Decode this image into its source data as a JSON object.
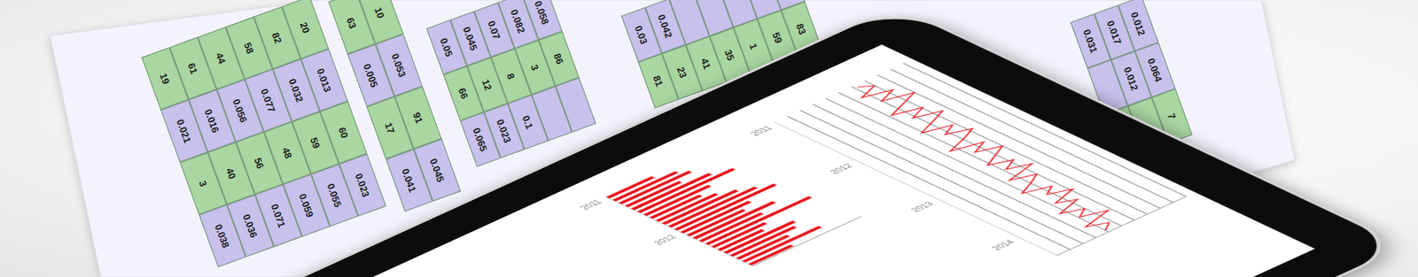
{
  "paper": {
    "tables": [
      {
        "rows": [
          [
            20,
            0.013,
            60,
            0.023
          ],
          [
            82,
            0.032,
            59,
            0.055
          ],
          [
            58,
            0.077,
            48,
            0.059
          ],
          [
            44,
            0.056,
            56,
            0.071
          ],
          [
            61,
            0.016,
            40,
            0.036
          ],
          [
            19,
            0.021,
            3,
            0.038
          ]
        ]
      },
      {
        "rows": [
          [
            10,
            0.053,
            91,
            0.045
          ],
          [
            63,
            0.005,
            17,
            0.041
          ]
        ]
      },
      {
        "rows": [
          [
            0.058,
            86,
            null
          ],
          [
            0.082,
            3,
            null
          ],
          [
            0.07,
            8,
            0.1
          ],
          [
            0.045,
            12,
            0.023
          ],
          [
            0.05,
            66,
            0.065
          ]
        ]
      },
      {
        "rows": [
          [
            null,
            83
          ],
          [
            null,
            59
          ],
          [
            null,
            1
          ],
          [
            null,
            35
          ],
          [
            null,
            41
          ],
          [
            0.042,
            23
          ],
          [
            0.03,
            81
          ]
        ]
      },
      {
        "rows": [
          [
            0.012,
            0.064,
            7
          ],
          [
            0.017,
            0.012,
            null
          ],
          [
            0.031,
            null,
            null
          ]
        ]
      }
    ]
  },
  "chart_data": [
    {
      "type": "bar",
      "orientation": "horizontal",
      "categories": [
        "2011",
        null,
        null,
        null,
        null,
        null,
        null,
        null,
        null,
        null,
        null,
        null,
        "2012",
        null,
        null,
        null,
        null,
        null,
        null,
        null,
        null,
        null,
        null,
        null
      ],
      "values": [
        42,
        58,
        65,
        50,
        72,
        88,
        60,
        46,
        55,
        68,
        80,
        92,
        63,
        52,
        74,
        57,
        96,
        49,
        41,
        64,
        59,
        47,
        71,
        39
      ],
      "color": "#e8141c",
      "xlim": [
        0,
        100
      ],
      "tick_labels": "y",
      "grid": false
    },
    {
      "type": "line",
      "orientation": "horizontal",
      "categories": [
        "2011",
        null,
        null,
        null,
        null,
        null,
        null,
        null,
        null,
        null,
        null,
        null,
        "2012",
        null,
        null,
        null,
        null,
        null,
        null,
        null,
        null,
        null,
        null,
        null,
        "2013",
        null,
        null,
        null,
        null,
        null,
        null,
        null,
        null,
        null,
        null,
        null,
        "2014",
        null,
        null,
        null,
        null,
        null
      ],
      "values": [
        62,
        70,
        55,
        74,
        60,
        80,
        66,
        52,
        71,
        58,
        76,
        63,
        49,
        68,
        57,
        73,
        61,
        45,
        66,
        54,
        70,
        59,
        48,
        63,
        52,
        67,
        44,
        60,
        50,
        38,
        56,
        47,
        62,
        43,
        55,
        36,
        50,
        41,
        58,
        35,
        48,
        40
      ],
      "color": "#e8141c",
      "xlim": [
        0,
        100
      ],
      "xticks": [
        0,
        10,
        20,
        30,
        40,
        50,
        60,
        70,
        80,
        90,
        100
      ],
      "tick_labels": "y",
      "grid": true
    }
  ]
}
